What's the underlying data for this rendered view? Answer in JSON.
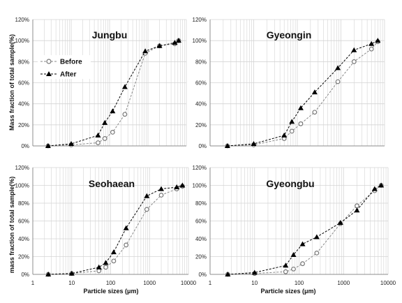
{
  "chart_data": {
    "type": "line",
    "x_scale": "log",
    "xlim": [
      1,
      10000
    ],
    "ylim": [
      0,
      120
    ],
    "x_tick_labels": [
      "1",
      "10",
      "100",
      "1000",
      "10000"
    ],
    "y_tick_labels": [
      "0%",
      "20%",
      "40%",
      "60%",
      "80%",
      "100%",
      "120%"
    ],
    "y_label_top": "Mass fraction of total sample(%)",
    "y_label_bottom": "mass fraction of total sample(%)",
    "x_label": "Particle sizes (μm)",
    "grid": true,
    "legend": {
      "placement": "upper-left of Jungbu panel",
      "before": "Before",
      "after": "After"
    },
    "colors": {
      "before": "#888888",
      "after": "#000000",
      "grid": "#d4d4d4",
      "axis": "#8c8c8c"
    },
    "panels": [
      {
        "title": "Jungbu",
        "series": [
          {
            "name": "Before",
            "marker": "circle",
            "x": [
              2.5,
              10,
              50,
              75,
              120,
              250,
              850,
              2000,
              5000,
              6300
            ],
            "y": [
              0,
              1,
              3,
              7,
              13,
              30,
              88,
              95,
              97,
              100
            ]
          },
          {
            "name": "After",
            "marker": "triangle",
            "x": [
              2.5,
              10,
              50,
              75,
              120,
              250,
              850,
              2000,
              5000,
              6300
            ],
            "y": [
              0,
              2,
              10,
              22,
              33,
              56,
              90,
              95,
              98,
              100
            ]
          }
        ]
      },
      {
        "title": "Gyeongin",
        "series": [
          {
            "name": "Before",
            "marker": "circle",
            "x": [
              2.5,
              10,
              50,
              75,
              120,
              250,
              850,
              2000,
              5000,
              7000
            ],
            "y": [
              0,
              1,
              7,
              14,
              21,
              32,
              61,
              80,
              92,
              99
            ]
          },
          {
            "name": "After",
            "marker": "triangle",
            "x": [
              2.5,
              10,
              50,
              75,
              120,
              250,
              850,
              2000,
              5000,
              7000
            ],
            "y": [
              0,
              2,
              10,
              23,
              36,
              51,
              74,
              91,
              97,
              100
            ]
          }
        ]
      },
      {
        "title": "Seohaean",
        "series": [
          {
            "name": "Before",
            "marker": "circle",
            "x": [
              2.5,
              10,
              50,
              75,
              120,
              250,
              850,
              2000,
              5000,
              7000
            ],
            "y": [
              0,
              1,
              4,
              8,
              15,
              33,
              73,
              89,
              96,
              99
            ]
          },
          {
            "name": "After",
            "marker": "triangle",
            "x": [
              2.5,
              10,
              50,
              75,
              120,
              250,
              850,
              2000,
              5000,
              7000
            ],
            "y": [
              0,
              1,
              8,
              13,
              25,
              52,
              88,
              96,
              98,
              100
            ]
          }
        ]
      },
      {
        "title": "Gyeongbu",
        "series": [
          {
            "name": "Before",
            "marker": "circle",
            "x": [
              2.5,
              10,
              50,
              75,
              120,
              250,
              850,
              2000,
              5000,
              7000
            ],
            "y": [
              0,
              1,
              3,
              6,
              12,
              24,
              57,
              77,
              94,
              100
            ]
          },
          {
            "name": "After",
            "marker": "triangle",
            "x": [
              2.5,
              10,
              50,
              75,
              120,
              250,
              850,
              2000,
              5000,
              7000
            ],
            "y": [
              0,
              2,
              10,
              22,
              34,
              42,
              58,
              72,
              96,
              100
            ]
          }
        ]
      }
    ]
  }
}
